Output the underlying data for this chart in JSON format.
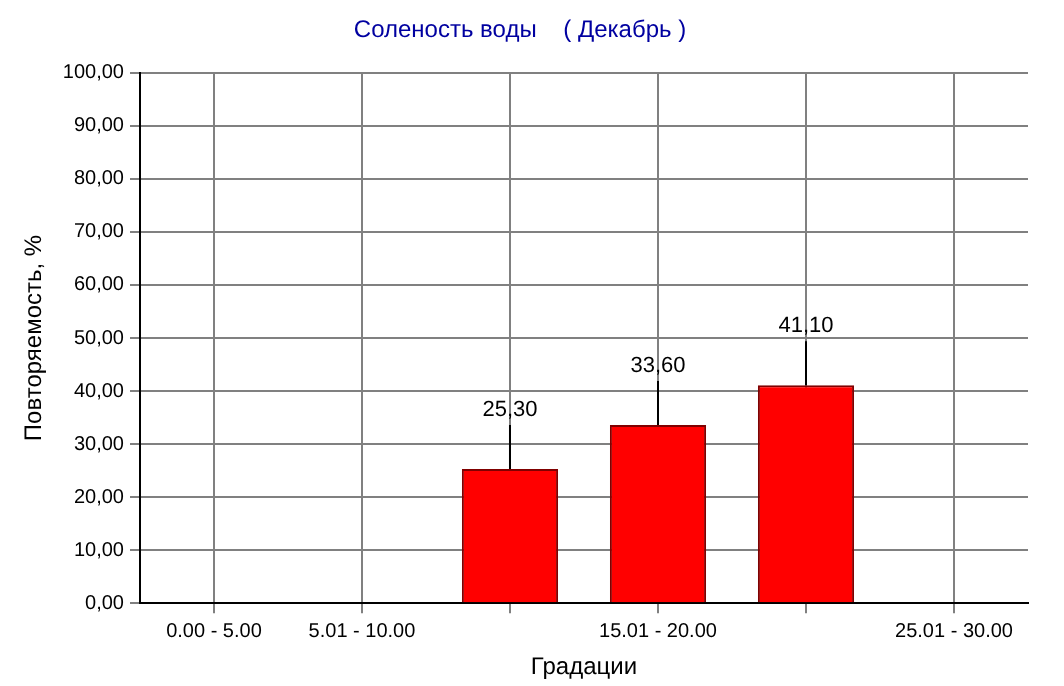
{
  "chart_data": {
    "type": "bar",
    "title": "Соленость воды    ( Декабрь )",
    "xlabel": "Градации",
    "ylabel": "Повторяемость, %",
    "categories": [
      "0.00 - 5.00",
      "5.01 - 10.00",
      null,
      "15.01 - 20.00",
      null,
      "25.01 - 30.00"
    ],
    "values": [
      0,
      0,
      25.3,
      33.6,
      41.1,
      0
    ],
    "color": "#ff0000",
    "value_labels": [
      null,
      null,
      "25,30",
      "33,60",
      "41,10",
      null
    ],
    "ylim": [
      0,
      100
    ],
    "yticks": [
      {
        "value": 0,
        "label": "0,00"
      },
      {
        "value": 10,
        "label": "10,00"
      },
      {
        "value": 20,
        "label": "20,00"
      },
      {
        "value": 30,
        "label": "30,00"
      },
      {
        "value": 40,
        "label": "40,00"
      },
      {
        "value": 50,
        "label": "50,00"
      },
      {
        "value": 60,
        "label": "60,00"
      },
      {
        "value": 70,
        "label": "70,00"
      },
      {
        "value": 80,
        "label": "80,00"
      },
      {
        "value": 90,
        "label": "90,00"
      },
      {
        "value": 100,
        "label": "100,00"
      }
    ],
    "grid": true,
    "legend": false
  }
}
